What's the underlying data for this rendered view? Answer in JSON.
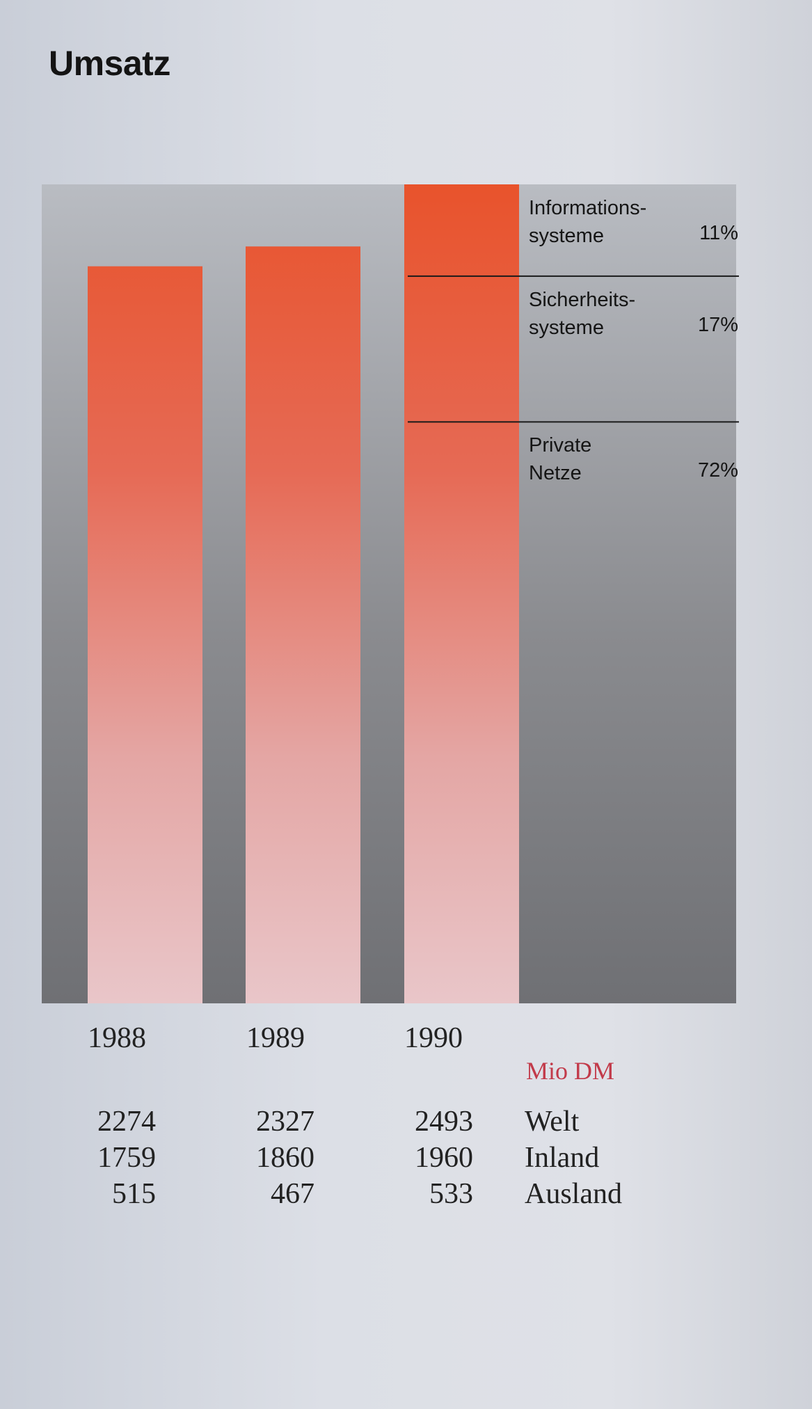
{
  "title": "Umsatz",
  "unit": "Mio DM",
  "colors": {
    "bar_top": "#e8532c",
    "bar_bottom": "#e9c4c8",
    "panel_top": "#b9bcc2",
    "panel_bottom": "#6f7074",
    "divider": "#1a1a1a",
    "unit_text": "#c23a4a"
  },
  "chart_data": {
    "type": "bar",
    "categories": [
      "1988",
      "1989",
      "1990"
    ],
    "series": [
      {
        "name": "Welt",
        "values": [
          2274,
          2327,
          2493
        ]
      },
      {
        "name": "Inland",
        "values": [
          1759,
          1860,
          1960
        ]
      },
      {
        "name": "Ausland",
        "values": [
          515,
          467,
          533
        ]
      }
    ],
    "display_labels": {
      "Welt": [
        "2274",
        "2327",
        "2493"
      ],
      "Inland": [
        "1759",
        "1860",
        "1960"
      ],
      "Ausland": [
        "515",
        "467",
        "533"
      ]
    },
    "bar_series": "Welt",
    "breakdown_1990": [
      {
        "label": "Informations-\nsysteme",
        "share": 11,
        "pct_label": "11%"
      },
      {
        "label": "Sicherheits-\nsysteme",
        "share": 17,
        "pct_label": "17%"
      },
      {
        "label": "Private\nNetze",
        "share": 72,
        "pct_label": "72%"
      }
    ],
    "ylim": [
      0,
      2493
    ],
    "grid": false,
    "legend": "none"
  }
}
